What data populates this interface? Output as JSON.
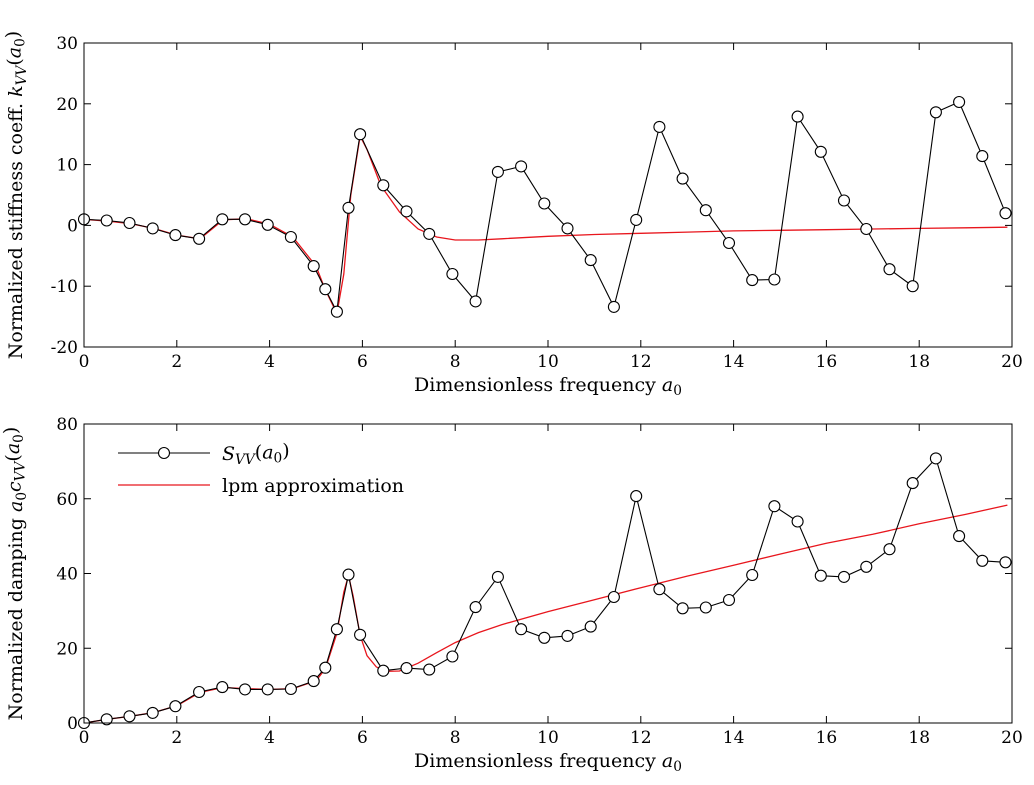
{
  "chart_data": [
    {
      "type": "line",
      "xlabel": "Dimensionless frequency a0",
      "ylabel": "Normalized stiffness coeff. kVV(a0)",
      "xlim": [
        0,
        20
      ],
      "ylim": [
        -20,
        30
      ],
      "xticks": [
        0,
        2,
        4,
        6,
        8,
        10,
        12,
        14,
        16,
        18,
        20
      ],
      "yticks": [
        -20,
        -10,
        0,
        10,
        20,
        30
      ],
      "series": [
        {
          "color": "#000000",
          "marker": "circle-open",
          "x": [
            0,
            0.49,
            0.98,
            1.48,
            1.97,
            2.48,
            2.98,
            3.47,
            3.96,
            4.46,
            4.95,
            5.2,
            5.45,
            5.7,
            5.95,
            6.45,
            6.95,
            7.44,
            7.94,
            8.44,
            8.92,
            9.42,
            9.92,
            10.42,
            10.92,
            11.42,
            11.9,
            12.4,
            12.9,
            13.4,
            13.9,
            14.4,
            14.88,
            15.38,
            15.88,
            16.38,
            16.86,
            17.36,
            17.86,
            18.36,
            18.86,
            19.36,
            19.86
          ],
          "y": [
            1,
            0.8,
            0.4,
            -0.5,
            -1.6,
            -2.2,
            1,
            1,
            0.1,
            -1.9,
            -6.7,
            -10.5,
            -14.2,
            2.9,
            15,
            6.6,
            2.3,
            -1.4,
            -8,
            -12.5,
            8.8,
            9.7,
            3.6,
            -0.5,
            -5.7,
            -13.4,
            0.9,
            16.2,
            7.7,
            2.5,
            -2.9,
            -9,
            -8.9,
            17.9,
            12.1,
            4.1,
            -0.6,
            -7.2,
            -10,
            18.6,
            20.3,
            11.4,
            2
          ]
        },
        {
          "color": "#e8161d",
          "marker": "none",
          "x": [
            0,
            0.5,
            1,
            1.5,
            2,
            2.5,
            3,
            3.5,
            4,
            4.5,
            5,
            5.2,
            5.45,
            5.6,
            5.75,
            5.95,
            6.1,
            6.4,
            6.8,
            7.2,
            7.6,
            8,
            8.5,
            9,
            10,
            11,
            12,
            13,
            14,
            15,
            16,
            17,
            18,
            19,
            19.9
          ],
          "y": [
            1,
            0.7,
            0.3,
            -0.5,
            -1.6,
            -2.2,
            0.9,
            1.1,
            0.2,
            -1.9,
            -6.7,
            -10.6,
            -14.5,
            -8,
            5,
            14.7,
            12.5,
            6.5,
            2.2,
            -0.6,
            -1.9,
            -2.4,
            -2.4,
            -2.2,
            -1.8,
            -1.5,
            -1.3,
            -1.1,
            -0.9,
            -0.8,
            -0.7,
            -0.6,
            -0.5,
            -0.4,
            -0.3
          ]
        }
      ]
    },
    {
      "type": "line",
      "xlabel": "Dimensionless frequency a0",
      "ylabel": "Normalized damping a0cVV(a0)",
      "xlim": [
        0,
        20
      ],
      "ylim": [
        0,
        80
      ],
      "xticks": [
        0,
        2,
        4,
        6,
        8,
        10,
        12,
        14,
        16,
        18,
        20
      ],
      "yticks": [
        0,
        20,
        40,
        60,
        80
      ],
      "legend": "top-left",
      "series": [
        {
          "name": "SVV(a0)",
          "color": "#000000",
          "marker": "circle-open",
          "x": [
            0,
            0.49,
            0.98,
            1.48,
            1.97,
            2.48,
            2.98,
            3.47,
            3.96,
            4.46,
            4.95,
            5.2,
            5.45,
            5.7,
            5.95,
            6.45,
            6.95,
            7.44,
            7.94,
            8.44,
            8.92,
            9.42,
            9.92,
            10.42,
            10.92,
            11.42,
            11.9,
            12.4,
            12.9,
            13.4,
            13.9,
            14.4,
            14.88,
            15.38,
            15.88,
            16.38,
            16.86,
            17.36,
            17.86,
            18.36,
            18.86,
            19.36,
            19.86
          ],
          "y": [
            0,
            1,
            1.8,
            2.7,
            4.5,
            8.3,
            9.6,
            9,
            9,
            9.1,
            11.2,
            14.8,
            25.1,
            39.7,
            23.6,
            14,
            14.7,
            14.3,
            17.8,
            31,
            39.1,
            25.1,
            22.8,
            23.3,
            25.8,
            33.7,
            60.7,
            35.8,
            30.7,
            30.9,
            32.9,
            39.6,
            58,
            53.9,
            39.4,
            39.1,
            41.8,
            46.5,
            64.2,
            70.8,
            50,
            43.4,
            43
          ]
        },
        {
          "name": "lpm approximation",
          "color": "#e8161d",
          "marker": "none",
          "x": [
            0,
            0.5,
            1,
            1.5,
            2,
            2.5,
            3,
            3.5,
            4,
            4.5,
            5,
            5.2,
            5.45,
            5.6,
            5.7,
            5.8,
            5.95,
            6.1,
            6.3,
            6.5,
            6.8,
            7.2,
            7.6,
            8,
            8.5,
            9,
            10,
            11,
            12,
            13,
            14,
            15,
            16,
            17,
            18,
            19,
            19.9
          ],
          "y": [
            0,
            1,
            1.8,
            2.8,
            4.6,
            8.2,
            9.5,
            9.2,
            9,
            9.2,
            11.3,
            14.5,
            24,
            35,
            39.5,
            34,
            23.5,
            18,
            15,
            13.8,
            13.9,
            16,
            18.8,
            21.5,
            24.2,
            26.3,
            29.8,
            33,
            36.2,
            39.3,
            42.2,
            45.2,
            48.1,
            50.5,
            53.3,
            55.8,
            58.3
          ]
        }
      ]
    }
  ]
}
